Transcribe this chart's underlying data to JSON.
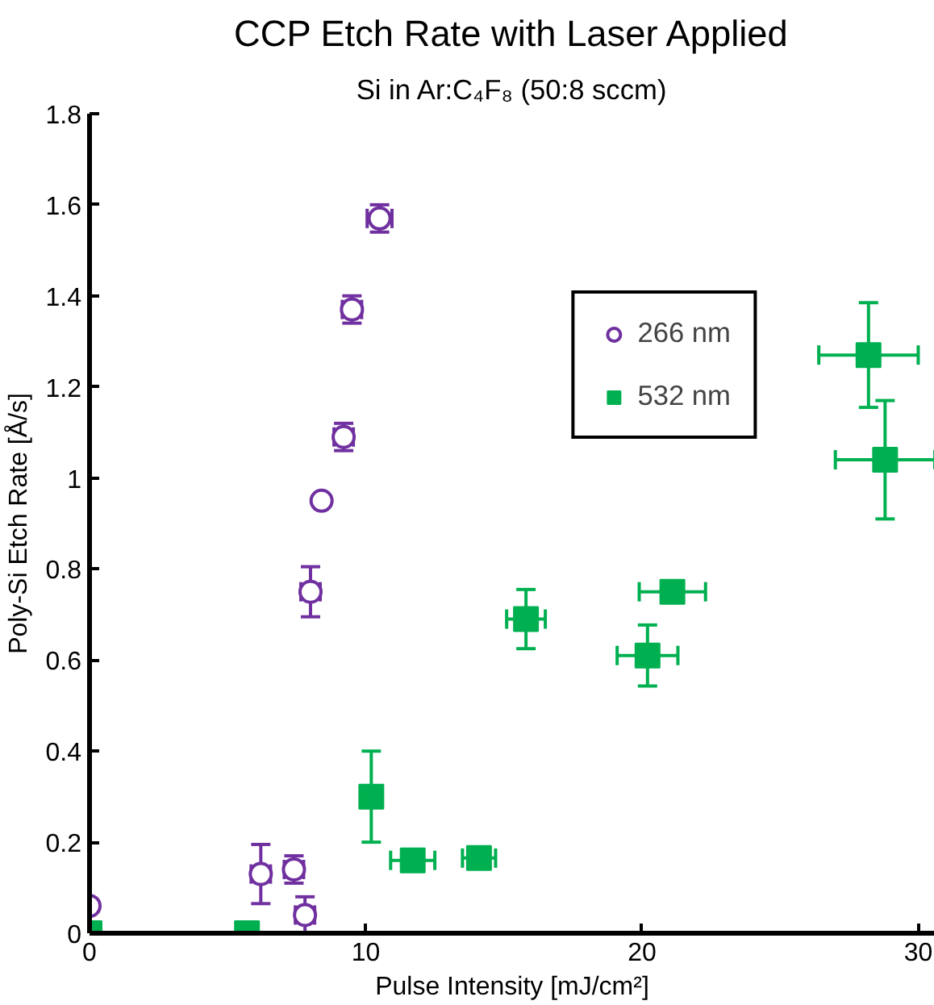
{
  "chart_data": {
    "type": "scatter",
    "title": "CCP Etch Rate with Laser Applied",
    "subtitle": "Si in Ar:C₄F₈ (50:8 sccm)",
    "xlabel": "Pulse Intensity [mJ/cm²]",
    "ylabel": "Poly-Si Etch Rate [Å/s]",
    "xlim": [
      0,
      30.6
    ],
    "xticks": [
      0,
      10,
      20,
      30
    ],
    "ylim": [
      0,
      1.8
    ],
    "yticks": [
      0,
      0.2,
      0.4,
      0.6,
      0.8,
      1,
      1.2,
      1.4,
      1.6,
      1.8
    ],
    "grid": false,
    "legend": "top right",
    "series": [
      {
        "name": "266 nm",
        "color": "#7030a0",
        "marker": "circle",
        "x": [
          0,
          6.2,
          7.4,
          7.8,
          8.0,
          8.4,
          9.2,
          9.5,
          10.5
        ],
        "values": [
          0.06,
          0.13,
          0.14,
          0.04,
          0.75,
          0.95,
          1.09,
          1.37,
          1.57
        ],
        "errors": [
          null,
          0.065,
          0.03,
          0.04,
          0.055,
          null,
          0.03,
          0.03,
          0.03
        ],
        "xerrors": [
          null,
          0.35,
          0.35,
          0.35,
          0.35,
          null,
          0.35,
          0.35,
          0.45
        ]
      },
      {
        "name": "532 nm",
        "color": "#00b050",
        "marker": "square",
        "x": [
          0,
          5.7,
          10.2,
          11.7,
          14.1,
          15.8,
          20.2,
          21.1,
          28.2,
          28.8
        ],
        "values": [
          0,
          0,
          0.3,
          0.16,
          0.165,
          0.69,
          0.61,
          0.75,
          1.27,
          1.04
        ],
        "errors": [
          null,
          null,
          0.1,
          0.02,
          0.02,
          0.065,
          0.067,
          0.02,
          0.115,
          0.13
        ],
        "xerrors": [
          null,
          null,
          null,
          0.8,
          0.6,
          0.7,
          1.1,
          1.2,
          1.8,
          1.8
        ]
      }
    ]
  }
}
